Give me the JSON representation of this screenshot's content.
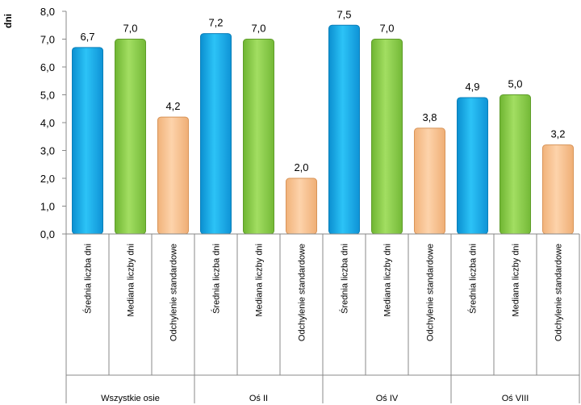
{
  "chart_data": {
    "type": "bar",
    "ylabel": "dni",
    "ylim": [
      0,
      8
    ],
    "ytick_step": 1,
    "ytick_labels": [
      "0,0",
      "1,0",
      "2,0",
      "3,0",
      "4,0",
      "5,0",
      "6,0",
      "7,0",
      "8,0"
    ],
    "grid": false,
    "legend": "none",
    "groups": [
      {
        "label": "Wszystkie osie",
        "bars": [
          {
            "category": "Średnia liczba dni",
            "value": 6.7,
            "label": "6,7",
            "color": "#1ab2ee"
          },
          {
            "category": "Mediana liczby dni",
            "value": 7.0,
            "label": "7,0",
            "color": "#8fd24b"
          },
          {
            "category": "Odchylenie standardowe",
            "value": 4.2,
            "label": "4,2",
            "color": "#fbc796"
          }
        ]
      },
      {
        "label": "Oś II",
        "bars": [
          {
            "category": "Średnia liczba dni",
            "value": 7.2,
            "label": "7,2",
            "color": "#1ab2ee"
          },
          {
            "category": "Mediana liczby dni",
            "value": 7.0,
            "label": "7,0",
            "color": "#8fd24b"
          },
          {
            "category": "Odchylenie standardowe",
            "value": 2.0,
            "label": "2,0",
            "color": "#fbc796"
          }
        ]
      },
      {
        "label": "Oś IV",
        "bars": [
          {
            "category": "Średnia liczba dni",
            "value": 7.5,
            "label": "7,5",
            "color": "#1ab2ee"
          },
          {
            "category": "Mediana liczby dni",
            "value": 7.0,
            "label": "7,0",
            "color": "#8fd24b"
          },
          {
            "category": "Odchylenie standardowe",
            "value": 3.8,
            "label": "3,8",
            "color": "#fbc796"
          }
        ]
      },
      {
        "label": "Oś VIII",
        "bars": [
          {
            "category": "Średnia liczba dni",
            "value": 4.9,
            "label": "4,9",
            "color": "#1ab2ee"
          },
          {
            "category": "Mediana liczby dni",
            "value": 5.0,
            "label": "5,0",
            "color": "#8fd24b"
          },
          {
            "category": "Odchylenie standardowe",
            "value": 3.2,
            "label": "3,2",
            "color": "#fbc796"
          }
        ]
      }
    ]
  }
}
